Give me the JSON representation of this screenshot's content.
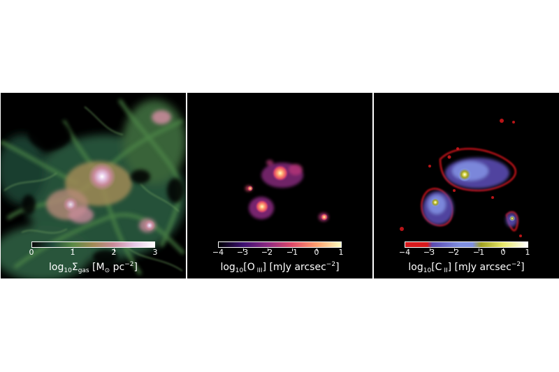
{
  "panels": [
    {
      "name": "gas-surface-density",
      "colorbar_ticks": [
        "0",
        "1",
        "2",
        "3"
      ],
      "label": {
        "pre": "log",
        "sub1": "10",
        "mid": "Σ",
        "sub2": "gas",
        "post": " [M",
        "sub3": "⊙",
        "post2": " pc",
        "sup": "−2",
        "end": "]"
      }
    },
    {
      "name": "oiii-emission",
      "colorbar_ticks": [
        "−4",
        "−3",
        "−2",
        "−1",
        "0",
        "1"
      ],
      "label": {
        "pre": "log",
        "sub1": "10",
        "mid": "[O",
        "sub2": " III",
        "post": "] [mJy arcsec",
        "sup": "−2",
        "end": "]"
      }
    },
    {
      "name": "cii-emission",
      "colorbar_ticks": [
        "−4",
        "−3",
        "−2",
        "−1",
        "0",
        "1"
      ],
      "label": {
        "pre": "log",
        "sub1": "10",
        "mid": "[C",
        "sub2": " II",
        "post": "] [mJy arcsec",
        "sup": "−2",
        "end": "]"
      }
    }
  ],
  "colors": {
    "background": "#000000",
    "gas_cmap": [
      "#0a0a0a",
      "#1f4a3a",
      "#5a8a45",
      "#a08a55",
      "#c88a9a",
      "#e6c6e6",
      "#ffffff"
    ],
    "oiii_cmap": [
      "#000004",
      "#3b0f70",
      "#8c2981",
      "#de4968",
      "#fe9f6d",
      "#fcfdbf"
    ],
    "cii_cmap": [
      "#d7191c",
      "#5a4ab0",
      "#7f8fe0",
      "#a0a020",
      "#e8e86a",
      "#ffffff"
    ]
  }
}
